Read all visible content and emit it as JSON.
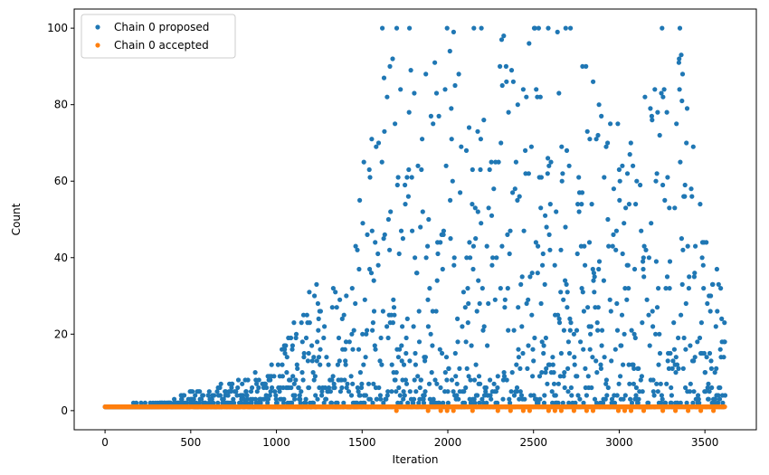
{
  "chart_data": {
    "type": "scatter",
    "title": "",
    "xlabel": "Iteration",
    "ylabel": "Count",
    "xlim": [
      -180,
      3800
    ],
    "ylim": [
      -5,
      105
    ],
    "xticks": [
      0,
      500,
      1000,
      1500,
      2000,
      2500,
      3000,
      3500
    ],
    "yticks": [
      0,
      20,
      40,
      60,
      80,
      100
    ],
    "grid": false,
    "legend_position": "top-left",
    "n_iterations": 3620,
    "series": [
      {
        "name": "Chain 0 proposed",
        "color": "#1f77b4",
        "description_points": [
          {
            "x": 0,
            "y_max": 1
          },
          {
            "x": 300,
            "y_max": 2
          },
          {
            "x": 500,
            "y_max": 5
          },
          {
            "x": 800,
            "y_max": 9
          },
          {
            "x": 1000,
            "y_max": 13
          },
          {
            "x": 1200,
            "y_max": 35
          },
          {
            "x": 1400,
            "y_max": 42
          },
          {
            "x": 1630,
            "y_max": 100
          },
          {
            "x": 2000,
            "y_max": 100
          },
          {
            "x": 2500,
            "y_max": 100
          },
          {
            "x": 2700,
            "y_max": 100
          },
          {
            "x": 3000,
            "y_max": 74
          },
          {
            "x": 3340,
            "y_max": 100
          },
          {
            "x": 3620,
            "y_max": 27
          }
        ]
      },
      {
        "name": "Chain 0 accepted",
        "color": "#ff7f0e",
        "constant_value": 1
      }
    ]
  }
}
